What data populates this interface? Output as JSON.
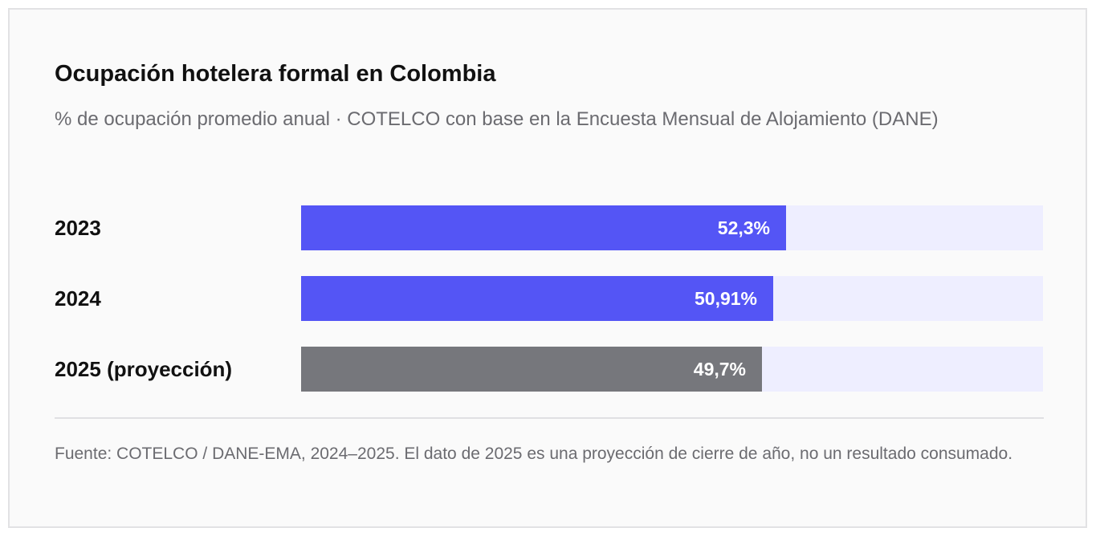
{
  "chart_data": {
    "type": "bar",
    "orientation": "horizontal",
    "title": "Ocupación hotelera formal en Colombia",
    "subtitle": "% de ocupación promedio anual · COTELCO con base en la Encuesta Mensual de Alojamiento (DANE)",
    "xlim": [
      0,
      80
    ],
    "categories": [
      "2023",
      "2024",
      "2025 (proyección)"
    ],
    "values": [
      52.3,
      50.91,
      49.7
    ],
    "value_labels": [
      "52,3%",
      "50,91%",
      "49,7%"
    ],
    "bar_colors": [
      "#5455f5",
      "#5455f5",
      "#76777c"
    ],
    "track_color": "#eeeeff",
    "grid": false,
    "legend": "none",
    "footnote": "Fuente: COTELCO / DANE-EMA, 2024–2025. El dato de 2025 es una proyección de cierre de año, no un resultado consumado."
  }
}
